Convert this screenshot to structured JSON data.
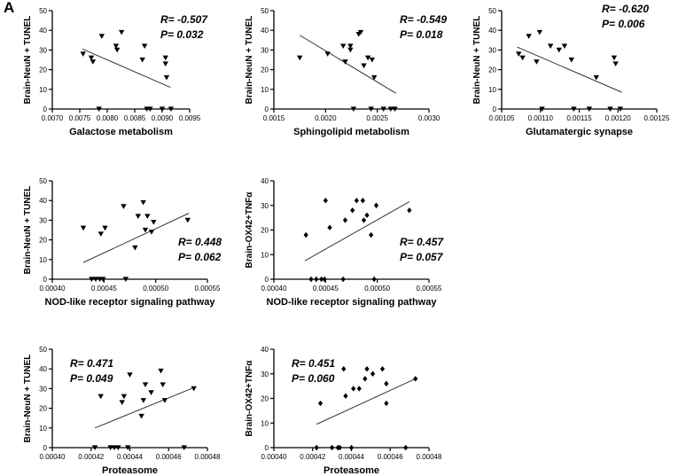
{
  "figure": {
    "panel_label": "A"
  },
  "chart_data": [
    {
      "type": "scatter",
      "marker": "triangle-down",
      "xlabel": "Galactose metabolism",
      "ylabel": "Brain-NeuN + TUNEL",
      "xlim": [
        0.007,
        0.0095
      ],
      "ylim": [
        0,
        50
      ],
      "xticks": [
        "0.0070",
        "0.0075",
        "0.0080",
        "0.0085",
        "0.0090",
        "0.0095"
      ],
      "yticks": [
        "0",
        "10",
        "20",
        "30",
        "40",
        "50"
      ],
      "stats": {
        "r": "R= -0.507",
        "p": "P= 0.032"
      },
      "stats_position": "top-right",
      "points": [
        [
          0.00756,
          28
        ],
        [
          0.00771,
          26
        ],
        [
          0.00774,
          24
        ],
        [
          0.00785,
          0
        ],
        [
          0.0079,
          37
        ],
        [
          0.00816,
          32
        ],
        [
          0.00818,
          30
        ],
        [
          0.00826,
          39
        ],
        [
          0.00864,
          25
        ],
        [
          0.00868,
          32
        ],
        [
          0.00872,
          0
        ],
        [
          0.00878,
          0
        ],
        [
          0.009,
          0
        ],
        [
          0.00906,
          26
        ],
        [
          0.00906,
          23
        ],
        [
          0.00908,
          16
        ],
        [
          0.00916,
          0
        ]
      ],
      "trend_line": [
        [
          0.00755,
          30.5
        ],
        [
          0.00915,
          11
        ]
      ]
    },
    {
      "type": "scatter",
      "marker": "triangle-down",
      "xlabel": "Sphingolipid metabolism",
      "ylabel": "Brain-NeuN + TUNEL",
      "xlim": [
        0.0015,
        0.003
      ],
      "ylim": [
        0,
        50
      ],
      "xticks": [
        "0.0015",
        "0.0020",
        "0.0025",
        "0.0030"
      ],
      "yticks": [
        "0",
        "10",
        "20",
        "30",
        "40",
        "50"
      ],
      "stats": {
        "r": "R= -0.549",
        "p": "P= 0.018"
      },
      "stats_position": "top-right",
      "points": [
        [
          0.00175,
          26
        ],
        [
          0.00202,
          28
        ],
        [
          0.00217,
          32
        ],
        [
          0.00219,
          24
        ],
        [
          0.00224,
          30
        ],
        [
          0.00224,
          32
        ],
        [
          0.00227,
          0
        ],
        [
          0.00232,
          38
        ],
        [
          0.00234,
          39
        ],
        [
          0.00237,
          22
        ],
        [
          0.00241,
          26
        ],
        [
          0.00244,
          0
        ],
        [
          0.00245,
          25
        ],
        [
          0.00247,
          16
        ],
        [
          0.00256,
          0
        ],
        [
          0.00263,
          0
        ],
        [
          0.00267,
          0
        ]
      ],
      "trend_line": [
        [
          0.00175,
          37.5
        ],
        [
          0.00268,
          8
        ]
      ]
    },
    {
      "type": "scatter",
      "marker": "triangle-down",
      "xlabel": "Glutamatergic synapse",
      "ylabel": "Brain-NeuN + TUNEL",
      "xlim": [
        0.00105,
        0.00125
      ],
      "ylim": [
        0,
        50
      ],
      "xticks": [
        "0.00105",
        "0.00110",
        "0.00115",
        "0.00120",
        "0.00125"
      ],
      "yticks": [
        "0",
        "10",
        "20",
        "30",
        "40",
        "50"
      ],
      "stats": {
        "r": "R= -0.620",
        "p": "P= 0.006"
      },
      "stats_position": "top-right",
      "points": [
        [
          0.001072,
          28
        ],
        [
          0.001077,
          26
        ],
        [
          0.001085,
          37
        ],
        [
          0.001095,
          24
        ],
        [
          0.001099,
          39
        ],
        [
          0.001102,
          0
        ],
        [
          0.001113,
          32
        ],
        [
          0.001124,
          30
        ],
        [
          0.001131,
          32
        ],
        [
          0.00114,
          25
        ],
        [
          0.001143,
          0
        ],
        [
          0.001163,
          0
        ],
        [
          0.001172,
          16
        ],
        [
          0.00119,
          0
        ],
        [
          0.001195,
          26
        ],
        [
          0.001197,
          23
        ],
        [
          0.001203,
          0
        ]
      ],
      "trend_line": [
        [
          0.00107,
          31.5
        ],
        [
          0.001205,
          8.5
        ]
      ]
    },
    {
      "type": "scatter",
      "marker": "triangle-down",
      "xlabel": "NOD-like receptor signaling pathway",
      "ylabel": "Brain-NeuN + TUNEL",
      "xlim": [
        0.0004,
        0.00055
      ],
      "ylim": [
        0,
        50
      ],
      "xticks": [
        "0.00040",
        "0.00045",
        "0.00050",
        "0.00055"
      ],
      "yticks": [
        "0",
        "10",
        "20",
        "30",
        "40",
        "50"
      ],
      "stats": {
        "r": "R= 0.448",
        "p": "P= 0.062"
      },
      "stats_position": "bottom-right",
      "points": [
        [
          0.00043,
          26
        ],
        [
          0.000438,
          0
        ],
        [
          0.000442,
          0
        ],
        [
          0.000446,
          0
        ],
        [
          0.000447,
          23
        ],
        [
          0.000449,
          0
        ],
        [
          0.000451,
          26
        ],
        [
          0.000469,
          37
        ],
        [
          0.000471,
          0
        ],
        [
          0.00048,
          16
        ],
        [
          0.000483,
          32
        ],
        [
          0.000488,
          39
        ],
        [
          0.00049,
          25
        ],
        [
          0.000492,
          32
        ],
        [
          0.000496,
          24
        ],
        [
          0.000498,
          29
        ],
        [
          0.000531,
          30
        ]
      ],
      "trend_line": [
        [
          0.00043,
          8.5
        ],
        [
          0.000532,
          33.5
        ]
      ]
    },
    {
      "type": "scatter",
      "marker": "diamond",
      "xlabel": "NOD-like receptor signaling pathway",
      "ylabel": "Brain-OX42+TNFα",
      "xlim": [
        0.0004,
        0.00055
      ],
      "ylim": [
        0,
        40
      ],
      "xticks": [
        "0.00040",
        "0.00045",
        "0.00050",
        "0.00055"
      ],
      "yticks": [
        "0",
        "10",
        "20",
        "30",
        "40"
      ],
      "stats": {
        "r": "R= 0.457",
        "p": "P= 0.057"
      },
      "stats_position": "bottom-right",
      "points": [
        [
          0.000431,
          18
        ],
        [
          0.000436,
          0
        ],
        [
          0.000441,
          0
        ],
        [
          0.000446,
          0
        ],
        [
          0.000449,
          0
        ],
        [
          0.00045,
          32
        ],
        [
          0.000454,
          21
        ],
        [
          0.000467,
          0
        ],
        [
          0.000469,
          24
        ],
        [
          0.000476,
          28
        ],
        [
          0.00048,
          32
        ],
        [
          0.000486,
          32
        ],
        [
          0.000487,
          24
        ],
        [
          0.00049,
          26
        ],
        [
          0.000494,
          18
        ],
        [
          0.000497,
          0
        ],
        [
          0.000499,
          30
        ],
        [
          0.000531,
          28
        ]
      ],
      "trend_line": [
        [
          0.00043,
          7.5
        ],
        [
          0.000531,
          31.5
        ]
      ]
    },
    {
      "type": "scatter",
      "marker": "triangle-down",
      "xlabel": "Proteasome",
      "ylabel": "Brain-NeuN + TUNEL",
      "xlim": [
        0.0004,
        0.00048
      ],
      "ylim": [
        0,
        50
      ],
      "xticks": [
        "0.00040",
        "0.00042",
        "0.00044",
        "0.00046",
        "0.00048"
      ],
      "yticks": [
        "0",
        "10",
        "20",
        "30",
        "40",
        "50"
      ],
      "stats": {
        "r": "R= 0.471",
        "p": "P= 0.049"
      },
      "stats_position": "top-left",
      "points": [
        [
          0.000422,
          0
        ],
        [
          0.000425,
          26
        ],
        [
          0.00043,
          0
        ],
        [
          0.000432,
          0
        ],
        [
          0.000434,
          0
        ],
        [
          0.000436,
          23
        ],
        [
          0.000437,
          26
        ],
        [
          0.000439,
          0
        ],
        [
          0.00044,
          37
        ],
        [
          0.000446,
          16
        ],
        [
          0.000447,
          24
        ],
        [
          0.000448,
          32
        ],
        [
          0.000451,
          28
        ],
        [
          0.000456,
          39
        ],
        [
          0.000457,
          32
        ],
        [
          0.000458,
          24
        ],
        [
          0.000468,
          0
        ],
        [
          0.000473,
          30
        ]
      ],
      "trend_line": [
        [
          0.000422,
          10
        ],
        [
          0.000473,
          30.5
        ]
      ]
    },
    {
      "type": "scatter",
      "marker": "diamond",
      "xlabel": "Proteasome",
      "ylabel": "Brain-OX42+TNFα",
      "xlim": [
        0.0004,
        0.00048
      ],
      "ylim": [
        0,
        40
      ],
      "xticks": [
        "0.00040",
        "0.00042",
        "0.00044",
        "0.00046",
        "0.00048"
      ],
      "yticks": [
        "0",
        "10",
        "20",
        "30",
        "40"
      ],
      "stats": {
        "r": "R= 0.451",
        "p": "P= 0.060"
      },
      "stats_position": "top-left",
      "points": [
        [
          0.000422,
          0
        ],
        [
          0.000424,
          18
        ],
        [
          0.00043,
          0
        ],
        [
          0.000433,
          0
        ],
        [
          0.000434,
          0
        ],
        [
          0.000436,
          32
        ],
        [
          0.000437,
          21
        ],
        [
          0.00044,
          0
        ],
        [
          0.000441,
          24
        ],
        [
          0.000444,
          24
        ],
        [
          0.000447,
          28
        ],
        [
          0.000448,
          32
        ],
        [
          0.000451,
          30
        ],
        [
          0.000456,
          32
        ],
        [
          0.000458,
          26
        ],
        [
          0.000458,
          18
        ],
        [
          0.000468,
          0
        ],
        [
          0.000473,
          28
        ]
      ],
      "trend_line": [
        [
          0.000422,
          9.5
        ],
        [
          0.000473,
          28
        ]
      ]
    }
  ]
}
